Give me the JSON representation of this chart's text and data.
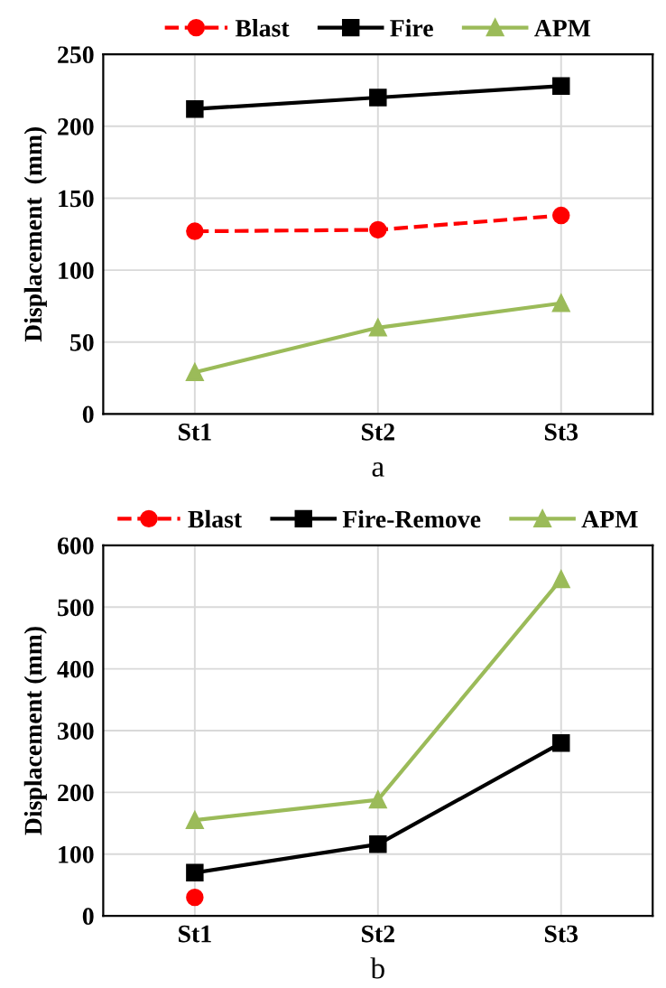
{
  "chart_data": [
    {
      "type": "line",
      "xlabel": "a",
      "ylabel": "Displacement  (mm)",
      "categories": [
        "St1",
        "St2",
        "St3"
      ],
      "ylim": [
        0,
        250
      ],
      "yticks": [
        0,
        50,
        100,
        150,
        200,
        250
      ],
      "grid": true,
      "legend": "top",
      "series": [
        {
          "name": "Blast",
          "color": "#ff0000",
          "values": [
            127,
            128,
            138
          ],
          "marker": "circle",
          "line_style": "dashed"
        },
        {
          "name": "Fire",
          "color": "#000000",
          "values": [
            212,
            220,
            228
          ],
          "marker": "square",
          "line_style": "solid"
        },
        {
          "name": "APM",
          "color": "#9bbb59",
          "values": [
            29,
            60,
            77
          ],
          "marker": "triangle",
          "line_style": "solid"
        }
      ]
    },
    {
      "type": "line",
      "xlabel": "b",
      "ylabel": "Displacement (mm)",
      "categories": [
        "St1",
        "St2",
        "St3"
      ],
      "ylim": [
        0,
        600
      ],
      "yticks": [
        0,
        100,
        200,
        300,
        400,
        500,
        600
      ],
      "grid": true,
      "legend": "top",
      "series": [
        {
          "name": "Blast",
          "color": "#ff0000",
          "values": [
            30,
            null,
            null
          ],
          "marker": "circle",
          "line_style": "dashed"
        },
        {
          "name": "Fire-Remove",
          "color": "#000000",
          "values": [
            70,
            116,
            280
          ],
          "marker": "square",
          "line_style": "solid"
        },
        {
          "name": "APM",
          "color": "#9bbb59",
          "values": [
            155,
            188,
            545
          ],
          "marker": "triangle",
          "line_style": "solid"
        }
      ]
    }
  ]
}
